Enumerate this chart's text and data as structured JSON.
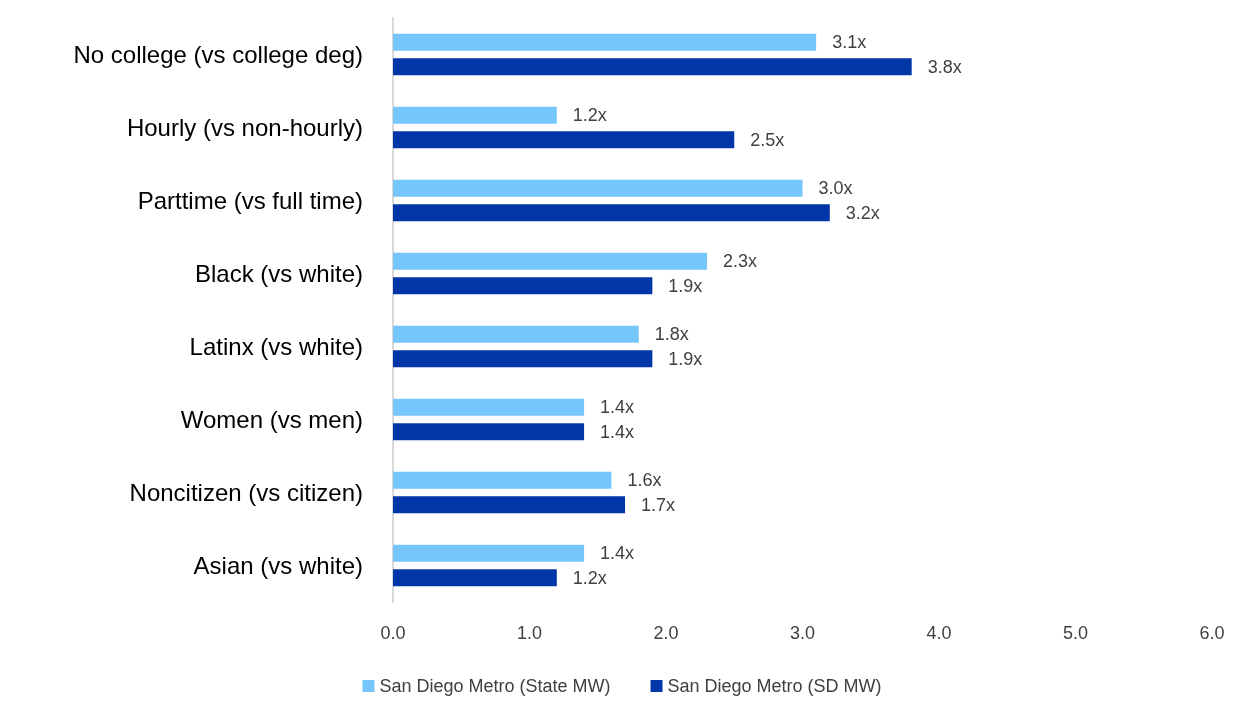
{
  "chart_data": {
    "type": "bar",
    "orientation": "horizontal",
    "categories": [
      "No college (vs college deg)",
      "Hourly (vs non-hourly)",
      "Parttime (vs full time)",
      "Black (vs white)",
      "Latinx (vs white)",
      "Women (vs men)",
      "Noncitizen (vs citizen)",
      "Asian (vs white)"
    ],
    "series": [
      {
        "name": "San Diego Metro (State MW)",
        "color": "#75c6fb",
        "values": [
          3.1,
          1.2,
          3.0,
          2.3,
          1.8,
          1.4,
          1.6,
          1.4
        ],
        "value_labels": [
          "3.1x",
          "1.2x",
          "3.0x",
          "2.3x",
          "1.8x",
          "1.4x",
          "1.6x",
          "1.4x"
        ]
      },
      {
        "name": "San Diego Metro (SD MW)",
        "color": "#0036a8",
        "values": [
          3.8,
          2.5,
          3.2,
          1.9,
          1.9,
          1.4,
          1.7,
          1.2
        ],
        "value_labels": [
          "3.8x",
          "2.5x",
          "3.2x",
          "1.9x",
          "1.9x",
          "1.4x",
          "1.7x",
          "1.2x"
        ]
      }
    ],
    "xlim": [
      0,
      6
    ],
    "xticks": [
      {
        "value": 0,
        "label": "0.0"
      },
      {
        "value": 1,
        "label": "1.0"
      },
      {
        "value": 2,
        "label": "2.0"
      },
      {
        "value": 3,
        "label": "3.0"
      },
      {
        "value": 4,
        "label": "4.0"
      },
      {
        "value": 5,
        "label": "5.0"
      },
      {
        "value": 6,
        "label": "6.0"
      }
    ],
    "grid": false,
    "legend": "bottom"
  }
}
